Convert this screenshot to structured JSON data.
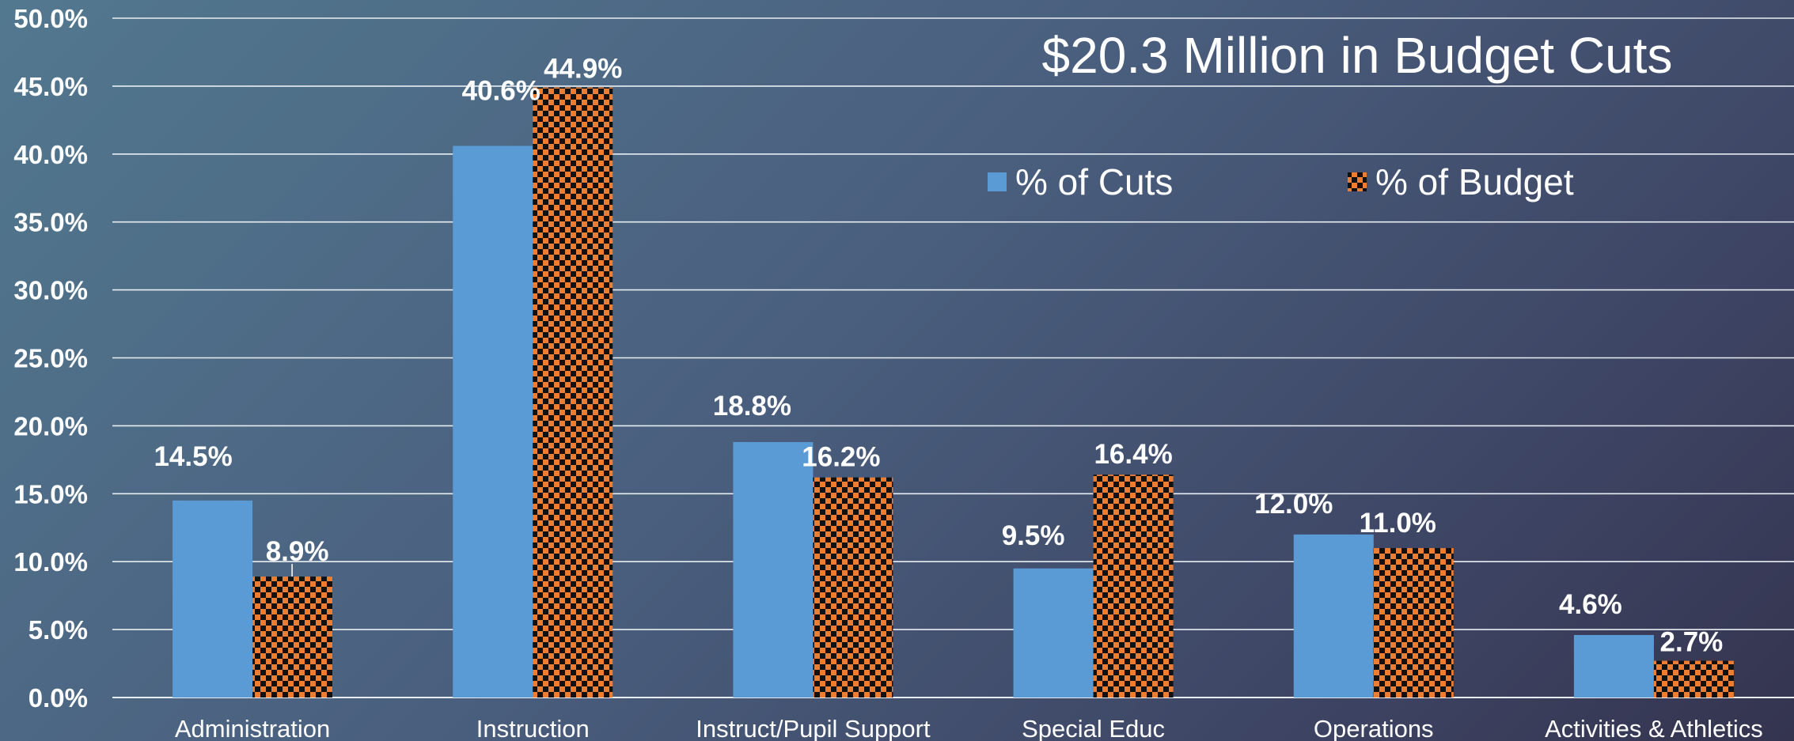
{
  "chart_data": {
    "type": "bar",
    "title": "$20.3 Million in Budget Cuts",
    "categories": [
      "Administration",
      "Instruction",
      "Instruct/Pupil Support",
      "Special Educ",
      "Operations",
      "Activities & Athletics"
    ],
    "series": [
      {
        "name": "% of Cuts",
        "values": [
          14.5,
          40.6,
          18.8,
          9.5,
          12.0,
          4.6
        ],
        "labels": [
          "14.5%",
          "40.6%",
          "18.8%",
          "9.5%",
          "12.0%",
          "4.6%"
        ],
        "color": "#5b9bd5",
        "pattern": "solid"
      },
      {
        "name": "% of Budget",
        "values": [
          8.9,
          44.9,
          16.2,
          16.4,
          11.0,
          2.7
        ],
        "labels": [
          "8.9%",
          "44.9%",
          "16.2%",
          "16.4%",
          "11.0%",
          "2.7%"
        ],
        "color": "#ed7d31",
        "pattern": "checkerboard"
      }
    ],
    "ylim": [
      0,
      50
    ],
    "yticks": [
      "0.0%",
      "5.0%",
      "10.0%",
      "15.0%",
      "20.0%",
      "25.0%",
      "30.0%",
      "35.0%",
      "40.0%",
      "45.0%",
      "50.0%"
    ],
    "xlabel": "",
    "ylabel": "",
    "grid": true,
    "legend_position": "top-right"
  }
}
